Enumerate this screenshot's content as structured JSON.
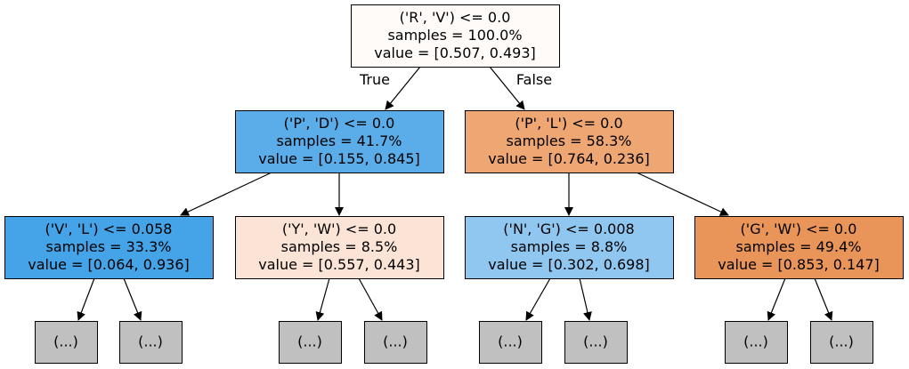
{
  "tree": {
    "nodes": [
      {
        "id": "root",
        "color": "#fffbf9",
        "lines": [
          "('R', 'V') <= 0.0",
          "samples = 100.0%",
          "value = [0.507, 0.493]"
        ]
      },
      {
        "id": "n_pd",
        "color": "#5aade9",
        "lines": [
          "('P', 'D') <= 0.0",
          "samples = 41.7%",
          "value = [0.155, 0.845]"
        ]
      },
      {
        "id": "n_pl",
        "color": "#eea672",
        "lines": [
          "('P', 'L') <= 0.0",
          "samples = 58.3%",
          "value = [0.764, 0.236]"
        ]
      },
      {
        "id": "n_vl",
        "color": "#45a3e7",
        "lines": [
          "('V', 'L') <= 0.058",
          "samples = 33.3%",
          "value = [0.064, 0.936]"
        ]
      },
      {
        "id": "n_yw",
        "color": "#fbe4d6",
        "lines": [
          "('Y', 'W') <= 0.0",
          "samples = 8.5%",
          "value = [0.557, 0.443]"
        ]
      },
      {
        "id": "n_ng",
        "color": "#8fc7f0",
        "lines": [
          "('N', 'G') <= 0.008",
          "samples = 8.8%",
          "value = [0.302, 0.698]"
        ]
      },
      {
        "id": "n_gw",
        "color": "#e99559",
        "lines": [
          "('G', 'W') <= 0.0",
          "samples = 49.4%",
          "value = [0.853, 0.147]"
        ]
      },
      {
        "id": "t1",
        "color": "#c0c0c0",
        "lines": [
          "(...)"
        ]
      },
      {
        "id": "t2",
        "color": "#c0c0c0",
        "lines": [
          "(...)"
        ]
      },
      {
        "id": "t3",
        "color": "#c0c0c0",
        "lines": [
          "(...)"
        ]
      },
      {
        "id": "t4",
        "color": "#c0c0c0",
        "lines": [
          "(...)"
        ]
      },
      {
        "id": "t5",
        "color": "#c0c0c0",
        "lines": [
          "(...)"
        ]
      },
      {
        "id": "t6",
        "color": "#c0c0c0",
        "lines": [
          "(...)"
        ]
      },
      {
        "id": "t7",
        "color": "#c0c0c0",
        "lines": [
          "(...)"
        ]
      },
      {
        "id": "t8",
        "color": "#c0c0c0",
        "lines": [
          "(...)"
        ]
      }
    ],
    "edges": [
      {
        "from": "root",
        "to": "n_pd",
        "label": "True"
      },
      {
        "from": "root",
        "to": "n_pl",
        "label": "False"
      },
      {
        "from": "n_pd",
        "to": "n_vl",
        "label": ""
      },
      {
        "from": "n_pd",
        "to": "n_yw",
        "label": ""
      },
      {
        "from": "n_pl",
        "to": "n_ng",
        "label": ""
      },
      {
        "from": "n_pl",
        "to": "n_gw",
        "label": ""
      },
      {
        "from": "n_vl",
        "to": "t1",
        "label": ""
      },
      {
        "from": "n_vl",
        "to": "t2",
        "label": ""
      },
      {
        "from": "n_yw",
        "to": "t3",
        "label": ""
      },
      {
        "from": "n_yw",
        "to": "t4",
        "label": ""
      },
      {
        "from": "n_ng",
        "to": "t5",
        "label": ""
      },
      {
        "from": "n_ng",
        "to": "t6",
        "label": ""
      },
      {
        "from": "n_gw",
        "to": "t7",
        "label": ""
      },
      {
        "from": "n_gw",
        "to": "t8",
        "label": ""
      }
    ]
  }
}
